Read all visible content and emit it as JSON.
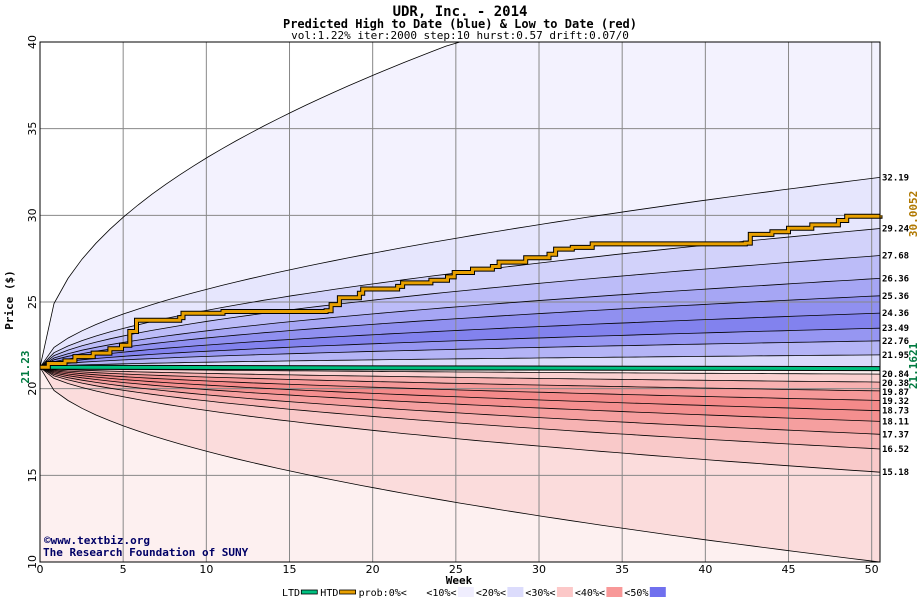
{
  "chart_data": {
    "type": "area",
    "title": "UDR, Inc. - 2014",
    "subtitle": "Predicted High to Date (blue) &  Low to Date (red)",
    "params": "vol:1.22% iter:2000 step:10 hurst:0.57 drift:0.07/0",
    "xlabel": "Week",
    "ylabel": "Price ($)",
    "xlim": [
      0,
      50.5
    ],
    "ylim": [
      10,
      40
    ],
    "x_ticks": [
      0,
      5,
      10,
      15,
      20,
      25,
      30,
      35,
      40,
      45,
      50
    ],
    "y_ticks": [
      10,
      15,
      20,
      25,
      30,
      35,
      40
    ],
    "grid": true,
    "start_price": 21.23,
    "start_label": "21.23",
    "ltd_value": 21.1621,
    "ltd_label": "21.1621",
    "htd_value": 30.0052,
    "htd_label": "30.0052",
    "high_quantiles": [
      {
        "label": "32.19",
        "end": 32.19
      },
      {
        "label": "29.24",
        "end": 29.24
      },
      {
        "label": "27.68",
        "end": 27.68
      },
      {
        "label": "26.36",
        "end": 26.36
      },
      {
        "label": "25.36",
        "end": 25.36
      },
      {
        "label": "24.36",
        "end": 24.36
      },
      {
        "label": "23.49",
        "end": 23.49
      },
      {
        "label": "22.76",
        "end": 22.76
      },
      {
        "label": "21.95",
        "end": 21.95
      }
    ],
    "low_quantiles": [
      {
        "label": "20.84",
        "end": 20.84
      },
      {
        "label": "20.38",
        "end": 20.38
      },
      {
        "label": "19.87",
        "end": 19.87
      },
      {
        "label": "19.32",
        "end": 19.32
      },
      {
        "label": "18.73",
        "end": 18.73
      },
      {
        "label": "18.11",
        "end": 18.11
      },
      {
        "label": "17.37",
        "end": 17.37
      },
      {
        "label": "16.52",
        "end": 16.52
      },
      {
        "label": "15.18",
        "end": 15.18
      }
    ],
    "outer_high_end": 40.0,
    "outer_low_end": 10.0,
    "htd_path": [
      [
        0,
        21.23
      ],
      [
        0.5,
        21.45
      ],
      [
        1.5,
        21.6
      ],
      [
        2.1,
        21.85
      ],
      [
        3.2,
        22.05
      ],
      [
        4.2,
        22.3
      ],
      [
        4.9,
        22.5
      ],
      [
        5.4,
        23.3
      ],
      [
        5.8,
        23.95
      ],
      [
        8.4,
        24.1
      ],
      [
        8.6,
        24.35
      ],
      [
        11,
        24.45
      ],
      [
        17.2,
        24.5
      ],
      [
        17.5,
        24.85
      ],
      [
        18,
        25.25
      ],
      [
        19.2,
        25.5
      ],
      [
        19.4,
        25.75
      ],
      [
        21.5,
        25.9
      ],
      [
        21.8,
        26.1
      ],
      [
        23.5,
        26.25
      ],
      [
        24.5,
        26.45
      ],
      [
        24.9,
        26.7
      ],
      [
        26,
        26.9
      ],
      [
        27.2,
        27.05
      ],
      [
        27.6,
        27.3
      ],
      [
        29.2,
        27.55
      ],
      [
        30.6,
        27.75
      ],
      [
        31,
        28.05
      ],
      [
        32,
        28.15
      ],
      [
        33.2,
        28.35
      ],
      [
        42.4,
        28.4
      ],
      [
        42.7,
        28.9
      ],
      [
        44,
        29.05
      ],
      [
        45,
        29.25
      ],
      [
        46.4,
        29.45
      ],
      [
        48,
        29.7
      ],
      [
        48.5,
        29.95
      ],
      [
        50.5,
        30.0
      ]
    ],
    "ltd_path": [
      [
        0,
        21.23
      ],
      [
        50.5,
        21.16
      ]
    ],
    "credit_lines": [
      "©www.textbiz.org",
      "The Research Foundation of SUNY"
    ],
    "legend": [
      {
        "label": "LTD",
        "color": "#00c080",
        "kind": "line"
      },
      {
        "label": "HTD",
        "color": "#e8a000",
        "kind": "line"
      },
      {
        "label": "prob:0%<",
        "color": "#ffffff",
        "kind": "swatch"
      },
      {
        "label": "<10%<",
        "color": "#f0eefe",
        "kind": "swatch"
      },
      {
        "label": "<20%<",
        "color": "#dcdcfc",
        "kind": "swatch"
      },
      {
        "label": "<30%<",
        "color": "#fcc8c8",
        "kind": "swatch"
      },
      {
        "label": "<40%<",
        "color": "#f89898",
        "kind": "swatch"
      },
      {
        "label": "<50%",
        "color": "#7070ee",
        "kind": "swatch"
      }
    ],
    "colors": {
      "high_bands": [
        "#f3f2fe",
        "#e6e6fd",
        "#d2d2fa",
        "#bcbcf8",
        "#a6a6f4",
        "#9090f0",
        "#8282ee",
        "#9696f2",
        "#b4b4f6",
        "#dadafb"
      ],
      "low_bands": [
        "#fbdcdc",
        "#f9c9c9",
        "#f7b3b3",
        "#f59f9f",
        "#f48f8f",
        "#f48a8a",
        "#f59898",
        "#f7b0b0",
        "#fad0d0",
        "#fdeeee"
      ],
      "ltd": "#00c080",
      "htd": "#e8a000",
      "grid": "#888888"
    }
  }
}
